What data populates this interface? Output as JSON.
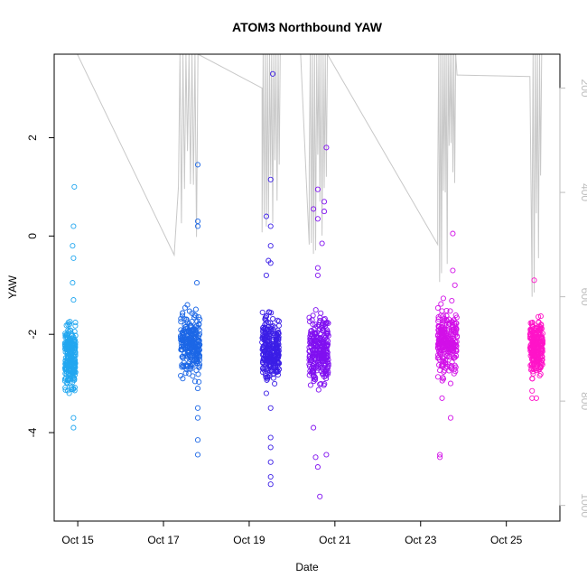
{
  "chart_data": {
    "type": "scatter",
    "title": "ATOM3 Northbound YAW",
    "xlabel": "Date",
    "ylabel": "YAW",
    "x_ticks": [
      "Oct 15",
      "Oct 17",
      "Oct 19",
      "Oct 21",
      "Oct 23",
      "Oct 25"
    ],
    "x_tick_days": [
      15,
      17,
      19,
      21,
      23,
      25
    ],
    "xlim_days": [
      14.45,
      26.25
    ],
    "y_ticks": [
      -4,
      -2,
      0,
      2
    ],
    "ylim": [
      -5.8,
      3.7
    ],
    "y2_ticks": [
      200,
      400,
      600,
      800,
      1000
    ],
    "y2lim": [
      1030,
      135
    ],
    "grid": false,
    "series": [
      {
        "day_range": [
          14.7,
          14.95
        ],
        "center": -2.45,
        "spread": 0.3,
        "color": "#22a7f0",
        "outliers": [
          [
            14.92,
            1.0
          ],
          [
            14.9,
            0.2
          ],
          [
            14.88,
            -0.2
          ],
          [
            14.9,
            -0.45
          ],
          [
            14.88,
            -0.95
          ],
          [
            14.9,
            -1.3
          ],
          [
            14.75,
            -3.0
          ],
          [
            14.8,
            -3.2
          ],
          [
            14.9,
            -3.1
          ],
          [
            14.9,
            -3.7
          ],
          [
            14.9,
            -3.9
          ]
        ]
      },
      {
        "day_range": [
          17.4,
          17.85
        ],
        "center": -2.2,
        "spread": 0.3,
        "color": "#1c67e6",
        "outliers": [
          [
            17.8,
            1.45
          ],
          [
            17.8,
            0.3
          ],
          [
            17.8,
            0.2
          ],
          [
            17.78,
            -0.95
          ],
          [
            17.8,
            -3.1
          ],
          [
            17.8,
            -3.5
          ],
          [
            17.8,
            -3.7
          ],
          [
            17.8,
            -4.15
          ],
          [
            17.8,
            -4.45
          ],
          [
            17.45,
            -2.9
          ]
        ]
      },
      {
        "day_range": [
          19.3,
          19.7
        ],
        "center": -2.3,
        "spread": 0.3,
        "color": "#3b1ee6",
        "outliers": [
          [
            19.55,
            3.3
          ],
          [
            19.5,
            1.15
          ],
          [
            19.4,
            0.4
          ],
          [
            19.5,
            0.2
          ],
          [
            19.5,
            -0.2
          ],
          [
            19.45,
            -0.5
          ],
          [
            19.5,
            -0.55
          ],
          [
            19.4,
            -0.8
          ],
          [
            19.5,
            -3.5
          ],
          [
            19.5,
            -4.1
          ],
          [
            19.5,
            -4.3
          ],
          [
            19.5,
            -4.6
          ],
          [
            19.5,
            -4.9
          ],
          [
            19.5,
            -5.05
          ],
          [
            19.4,
            -3.2
          ]
        ]
      },
      {
        "day_range": [
          20.4,
          20.85
        ],
        "center": -2.3,
        "spread": 0.35,
        "color": "#8010f0",
        "outliers": [
          [
            20.8,
            1.8
          ],
          [
            20.6,
            0.95
          ],
          [
            20.75,
            0.7
          ],
          [
            20.75,
            0.5
          ],
          [
            20.5,
            0.55
          ],
          [
            20.6,
            0.35
          ],
          [
            20.7,
            -0.15
          ],
          [
            20.6,
            -0.65
          ],
          [
            20.6,
            -0.8
          ],
          [
            20.55,
            -4.5
          ],
          [
            20.6,
            -4.7
          ],
          [
            20.65,
            -5.3
          ],
          [
            20.8,
            -4.45
          ],
          [
            20.5,
            -3.9
          ]
        ]
      },
      {
        "day_range": [
          23.4,
          23.85
        ],
        "center": -2.15,
        "spread": 0.3,
        "color": "#d210e8",
        "outliers": [
          [
            23.75,
            0.05
          ],
          [
            23.75,
            -0.7
          ],
          [
            23.8,
            -1.0
          ],
          [
            23.45,
            -4.45
          ],
          [
            23.45,
            -4.5
          ],
          [
            23.7,
            -3.7
          ],
          [
            23.5,
            -3.3
          ],
          [
            23.7,
            -3.0
          ]
        ]
      },
      {
        "day_range": [
          25.55,
          25.85
        ],
        "center": -2.25,
        "spread": 0.25,
        "color": "#ff14c8",
        "outliers": [
          [
            25.65,
            -0.9
          ],
          [
            25.6,
            -3.15
          ],
          [
            25.6,
            -3.3
          ],
          [
            25.7,
            -3.3
          ],
          [
            25.6,
            -2.9
          ]
        ]
      }
    ]
  }
}
